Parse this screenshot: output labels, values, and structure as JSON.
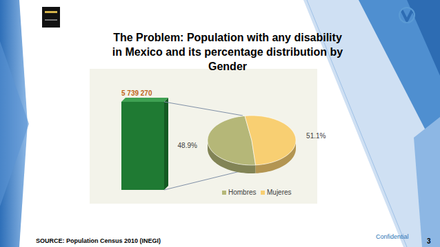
{
  "slide": {
    "title": "The Problem: Population with any disability in Mexico and its percentage distribution by Gender",
    "source": "SOURCE: Population Census 2010 (INEGI)",
    "footer": "Confidential",
    "page": 3
  },
  "chart_data": [
    {
      "type": "bar",
      "categories": [
        null
      ],
      "values": [
        5739270
      ],
      "value_labels": [
        "5 739 270"
      ],
      "color": "#1f7a33",
      "data_labels": true,
      "tick_labels": false
    },
    {
      "type": "pie",
      "categories": [
        "Hombres",
        "Mujeres"
      ],
      "values": [
        48.9,
        51.1
      ],
      "value_labels": [
        "48.9%",
        "51.1%"
      ],
      "colors": [
        "#b5b778",
        "#f8cf72"
      ],
      "data_labels": true,
      "legend": "bottom"
    }
  ]
}
